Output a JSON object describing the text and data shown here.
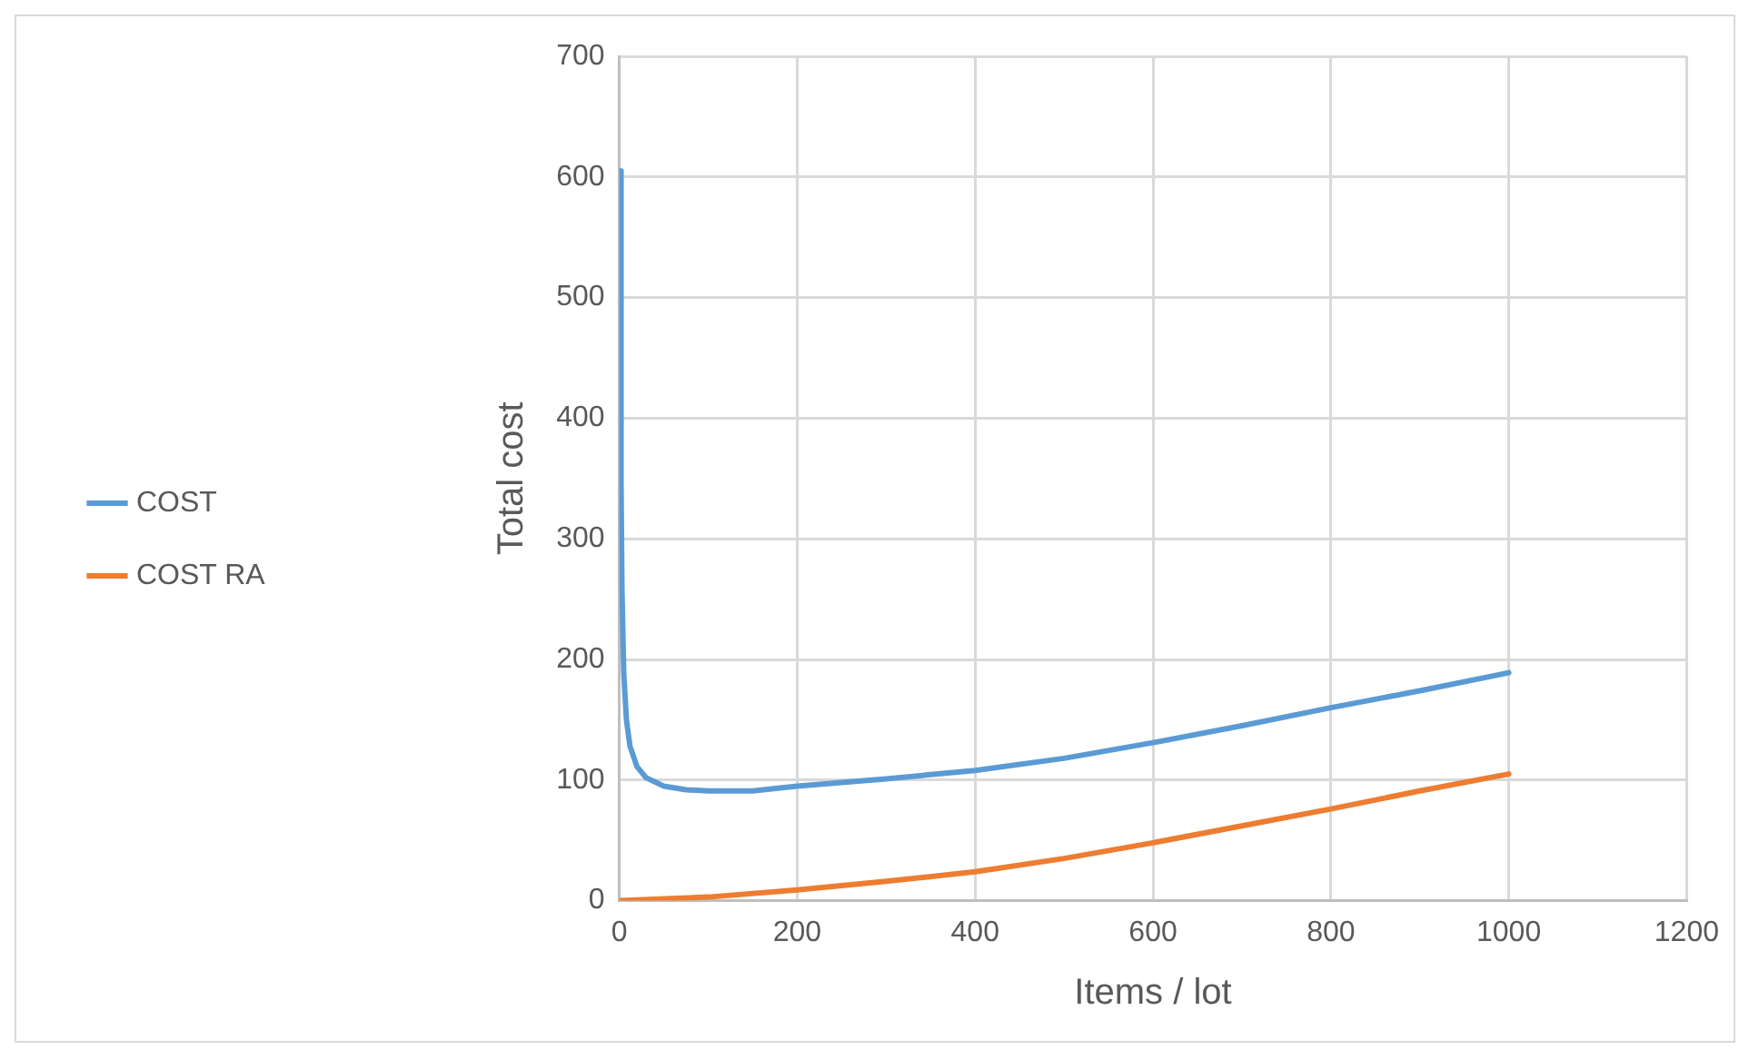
{
  "chart_data": {
    "type": "line",
    "xlabel": "Items / lot",
    "ylabel": "Total cost",
    "xlim": [
      0,
      1200
    ],
    "xticks": [
      0,
      200,
      400,
      600,
      800,
      1000,
      1200
    ],
    "ylim": [
      0,
      700
    ],
    "yticks": [
      0,
      100,
      200,
      300,
      400,
      500,
      600,
      700
    ],
    "grid": true,
    "legend": "left",
    "marker": "none",
    "line_style": "solid",
    "series": [
      {
        "name": "COST",
        "color": "#5b9bd5",
        "x": [
          1,
          2,
          3,
          5,
          8,
          12,
          20,
          30,
          50,
          75,
          100,
          150,
          200,
          300,
          400,
          500,
          600,
          700,
          800,
          900,
          1000
        ],
        "values": [
          605,
          345,
          258,
          189,
          150,
          128,
          111,
          102,
          95,
          92,
          91,
          91,
          95,
          101,
          108,
          118,
          131,
          145,
          160,
          174,
          189
        ]
      },
      {
        "name": "COST RA",
        "color": "#ed7d31",
        "x": [
          1,
          100,
          200,
          300,
          400,
          500,
          600,
          700,
          800,
          900,
          1000
        ],
        "values": [
          0,
          3,
          9,
          16,
          24,
          35,
          48,
          62,
          76,
          91,
          105
        ]
      }
    ]
  }
}
